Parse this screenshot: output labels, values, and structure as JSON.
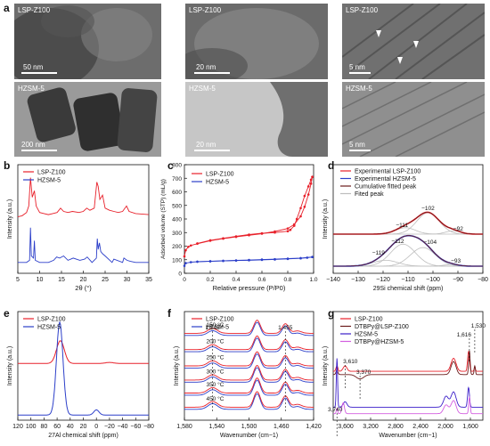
{
  "panel_letters": {
    "a": "a",
    "b": "b",
    "c": "c",
    "d": "d",
    "e": "e",
    "f": "f",
    "g": "g"
  },
  "tem_images": [
    {
      "label": "LSP-Z100",
      "scale": "50 nm",
      "shade": "#595959"
    },
    {
      "label": "LSP-Z100",
      "scale": "20 nm",
      "shade": "#7b7b7b"
    },
    {
      "label": "LSP-Z100",
      "scale": "5 nm",
      "shade": "#6e6e6e"
    },
    {
      "label": "HZSM-5",
      "scale": "200 nm",
      "shade": "#7c7c7c"
    },
    {
      "label": "HZSM-5",
      "scale": "20 nm",
      "shade": "#9a9a9a"
    },
    {
      "label": "HZSM-5",
      "scale": "5 nm",
      "shade": "#8a8a8a"
    }
  ],
  "chart_data": [
    {
      "id": "b",
      "type": "line",
      "xlabel": "2θ (°)",
      "ylabel": "Intensity (a.u.)",
      "xlim": [
        5,
        35
      ],
      "xticks": [
        5,
        10,
        15,
        20,
        25,
        30,
        35
      ],
      "series": [
        {
          "name": "LSP-Z100",
          "color": "#e8202a",
          "x": [
            5,
            6,
            7,
            7.5,
            7.9,
            8.3,
            8.8,
            9.2,
            10,
            11,
            12,
            13,
            14,
            14.8,
            15.5,
            16.5,
            17.5,
            19,
            20,
            20.8,
            21.5,
            22.5,
            23.1,
            23.4,
            23.8,
            24.4,
            25,
            26,
            27,
            28,
            29,
            29.9,
            30.5,
            32,
            35
          ],
          "y": [
            0.52,
            0.53,
            0.56,
            0.62,
            0.88,
            0.7,
            0.76,
            0.62,
            0.56,
            0.55,
            0.54,
            0.55,
            0.56,
            0.6,
            0.57,
            0.56,
            0.57,
            0.56,
            0.57,
            0.6,
            0.58,
            0.6,
            0.84,
            0.8,
            0.68,
            0.72,
            0.6,
            0.58,
            0.57,
            0.56,
            0.57,
            0.62,
            0.57,
            0.55,
            0.54
          ]
        },
        {
          "name": "HZSM-5",
          "color": "#2c3fc9",
          "x": [
            5,
            7,
            7.7,
            7.9,
            8.1,
            8.6,
            8.8,
            9,
            10,
            12,
            13.2,
            13.9,
            14.6,
            15.5,
            16.5,
            17.7,
            19.2,
            20.3,
            20.9,
            22,
            23,
            23.2,
            23.4,
            23.7,
            24,
            24.4,
            25,
            26.6,
            27,
            29,
            29.3,
            30,
            30.8,
            32,
            35
          ],
          "y": [
            0.1,
            0.1,
            0.12,
            0.42,
            0.16,
            0.14,
            0.3,
            0.12,
            0.1,
            0.1,
            0.12,
            0.15,
            0.14,
            0.16,
            0.12,
            0.14,
            0.12,
            0.13,
            0.15,
            0.1,
            0.14,
            0.32,
            0.22,
            0.28,
            0.2,
            0.18,
            0.16,
            0.1,
            0.13,
            0.1,
            0.14,
            0.12,
            0.11,
            0.1,
            0.1
          ]
        }
      ]
    },
    {
      "id": "c",
      "type": "line",
      "xlabel": "Relative pressure (P/P0)",
      "ylabel": "Adsorbed volume (STP) (mL/g)",
      "xlim": [
        0,
        1
      ],
      "ylim": [
        0,
        800
      ],
      "xticks": [
        0,
        0.2,
        0.4,
        0.6,
        0.8,
        1.0
      ],
      "yticks": [
        0,
        100,
        200,
        300,
        400,
        500,
        600,
        700,
        800
      ],
      "series": [
        {
          "name": "LSP-Z100",
          "color": "#e8202a",
          "adsorption_x": [
            0,
            0.01,
            0.03,
            0.05,
            0.1,
            0.2,
            0.3,
            0.4,
            0.5,
            0.6,
            0.7,
            0.8,
            0.85,
            0.9,
            0.93,
            0.96,
            0.98,
            0.99
          ],
          "adsorption_y": [
            125,
            170,
            195,
            205,
            218,
            240,
            255,
            268,
            280,
            292,
            308,
            330,
            360,
            420,
            490,
            580,
            660,
            710
          ],
          "desorption_x": [
            0.99,
            0.98,
            0.96,
            0.93,
            0.9,
            0.87,
            0.85,
            0.82,
            0.8,
            0.7,
            0.6,
            0.5,
            0.4,
            0.3,
            0.2,
            0.1
          ],
          "desorption_y": [
            710,
            690,
            640,
            570,
            480,
            400,
            350,
            320,
            310,
            300,
            295,
            285,
            272,
            258,
            243,
            220
          ]
        },
        {
          "name": "HZSM-5",
          "color": "#2c3fc9",
          "adsorption_x": [
            0,
            0.01,
            0.05,
            0.1,
            0.2,
            0.3,
            0.4,
            0.5,
            0.6,
            0.7,
            0.8,
            0.9,
            0.95,
            0.99
          ],
          "adsorption_y": [
            55,
            75,
            82,
            85,
            88,
            91,
            94,
            96,
            99,
            102,
            106,
            110,
            115,
            120
          ],
          "desorption_x": [
            0.99,
            0.9,
            0.8,
            0.7,
            0.6,
            0.5,
            0.4,
            0.3,
            0.2,
            0.1
          ],
          "desorption_y": [
            120,
            112,
            108,
            104,
            101,
            98,
            95,
            92,
            89,
            86
          ]
        }
      ]
    },
    {
      "id": "d",
      "type": "line",
      "xlabel": "29Si chemical shift (ppm)",
      "ylabel": "Intensity (a.u.)",
      "xlim": [
        -140,
        -80
      ],
      "xticks": [
        -140,
        -130,
        -120,
        -110,
        -100,
        -90,
        -80
      ],
      "series": [
        {
          "name": "Experimental LSP-Z100",
          "color": "#e8202a"
        },
        {
          "name": "Experimental HZSM-5",
          "color": "#2c3fc9"
        },
        {
          "name": "Cumulative fitted peak",
          "color": "#6b1b1b"
        },
        {
          "name": "Fited peak",
          "color": "#bdbdbd"
        }
      ],
      "lsp_peaks": [
        {
          "center": -111,
          "amp": 0.12,
          "width": 4
        },
        {
          "center": -102,
          "amp": 0.4,
          "width": 4.5
        },
        {
          "center": -92,
          "amp": 0.06,
          "width": 3
        }
      ],
      "hz_peaks": [
        {
          "center": -119,
          "amp": 0.12,
          "width": 5
        },
        {
          "center": -112,
          "amp": 0.45,
          "width": 5
        },
        {
          "center": -104,
          "amp": 0.38,
          "width": 5
        },
        {
          "center": -93,
          "amp": 0.03,
          "width": 3
        }
      ],
      "annotations": [
        {
          "text": "−102",
          "x": -102,
          "y": "upper"
        },
        {
          "text": "−111",
          "x": -111,
          "y": "upper"
        },
        {
          "text": "−92",
          "x": -92,
          "y": "upper"
        },
        {
          "text": "−112",
          "x": -112,
          "y": "lower"
        },
        {
          "text": "−104",
          "x": -104,
          "y": "lower"
        },
        {
          "text": "−119",
          "x": -119,
          "y": "lower"
        },
        {
          "text": "−93",
          "x": -93,
          "y": "lower"
        }
      ]
    },
    {
      "id": "e",
      "type": "line",
      "xlabel": "27Al chemical shift (ppm)",
      "ylabel": "Intensity (a.u.)",
      "xlim": [
        120,
        -80
      ],
      "xticks": [
        120,
        100,
        80,
        60,
        40,
        20,
        0,
        -20,
        -40,
        -60,
        -80
      ],
      "series": [
        {
          "name": "LSP-Z100",
          "color": "#e8202a",
          "peaks": [
            {
              "center": 55,
              "amp": 0.22,
              "width": 6
            },
            {
              "center": -20,
              "amp": 0.01,
              "width": 6
            }
          ],
          "baseline": 0.55
        },
        {
          "name": "HZSM-5",
          "color": "#2c3fc9",
          "peaks": [
            {
              "center": 56,
              "amp": 0.9,
              "width": 5
            },
            {
              "center": 0,
              "amp": 0.05,
              "width": 4
            }
          ],
          "baseline": 0.05
        }
      ]
    },
    {
      "id": "f",
      "type": "line",
      "xlabel": "Wavenumber (cm−1)",
      "ylabel": "Intensity (a.u.)",
      "xlim": [
        1580,
        1420
      ],
      "xticks": [
        1580,
        1540,
        1500,
        1460,
        1420
      ],
      "series": [
        {
          "name": "LSP-Z100",
          "color": "#e8202a"
        },
        {
          "name": "HZSM-5",
          "color": "#2c3fc9"
        }
      ],
      "temperatures": [
        "150 °C",
        "200 °C",
        "250 °C",
        "300 °C",
        "350 °C",
        "450 °C"
      ],
      "offsets": [
        0.78,
        0.63,
        0.48,
        0.35,
        0.23,
        0.1
      ],
      "peaks": [
        {
          "center": 1545,
          "amp": 0.08,
          "width": 6
        },
        {
          "center": 1490,
          "amp": 0.22,
          "width": 4
        },
        {
          "center": 1455,
          "amp": 0.16,
          "width": 4
        },
        {
          "center": 1440,
          "amp": 0.04,
          "width": 5
        }
      ],
      "annotations": [
        {
          "text": "1,545",
          "x": 1545
        },
        {
          "text": "1,455",
          "x": 1455
        }
      ]
    },
    {
      "id": "g",
      "type": "line",
      "xlabel": "Wavenumber (cm−1)",
      "ylabel": "Intensity (a.u.)",
      "xlim": [
        3800,
        1400
      ],
      "xticks": [
        3600,
        3200,
        2800,
        2400,
        2000,
        1600
      ],
      "series": [
        {
          "name": "LSP-Z100",
          "color": "#e8202a"
        },
        {
          "name": "DTBPy@LSP-Z100",
          "color": "#6b1b1b"
        },
        {
          "name": "HZSM-5",
          "color": "#3b1fc9"
        },
        {
          "name": "DTBPy@HZSM-5",
          "color": "#d35ee0"
        }
      ],
      "annotations": [
        {
          "text": "3,610",
          "x": 3610
        },
        {
          "text": "3,370",
          "x": 3370
        },
        {
          "text": "3,740",
          "x": 3740
        },
        {
          "text": "1,616",
          "x": 1616
        },
        {
          "text": "1,530",
          "x": 1530
        }
      ]
    }
  ]
}
